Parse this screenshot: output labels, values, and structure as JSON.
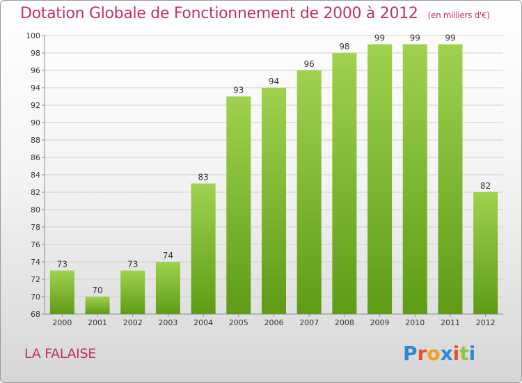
{
  "title": "Dotation Globale de Fonctionnement de 2000 à 2012",
  "title_unit": "(en milliers d'€)",
  "commune": "LA FALAISE",
  "logo": {
    "letters": [
      "P",
      "r",
      "o",
      "x",
      "i",
      "t",
      "i"
    ],
    "colors": [
      "#2a8ad8",
      "#e8502a",
      "#f0a020",
      "#2a8ad8",
      "#e8502a",
      "#8cc63e",
      "#2a8ad8"
    ]
  },
  "colors": {
    "bar_top": "#9fd24e",
    "bar_bottom": "#5e9c16",
    "title": "#c0306a",
    "grid": "#cfcfcf"
  },
  "chart_data": {
    "type": "bar",
    "title": "Dotation Globale de Fonctionnement de 2000 à 2012",
    "ylabel": "",
    "xlabel": "",
    "categories": [
      "2000",
      "2001",
      "2002",
      "2003",
      "2004",
      "2005",
      "2006",
      "2007",
      "2008",
      "2009",
      "2010",
      "2011",
      "2012"
    ],
    "values": [
      73,
      70,
      73,
      74,
      83,
      93,
      94,
      96,
      98,
      99,
      99,
      99,
      82
    ],
    "ylim": [
      68,
      100
    ],
    "yticks": [
      68,
      70,
      72,
      74,
      76,
      78,
      80,
      82,
      84,
      86,
      88,
      90,
      92,
      94,
      96,
      98,
      100
    ],
    "grid": true
  }
}
